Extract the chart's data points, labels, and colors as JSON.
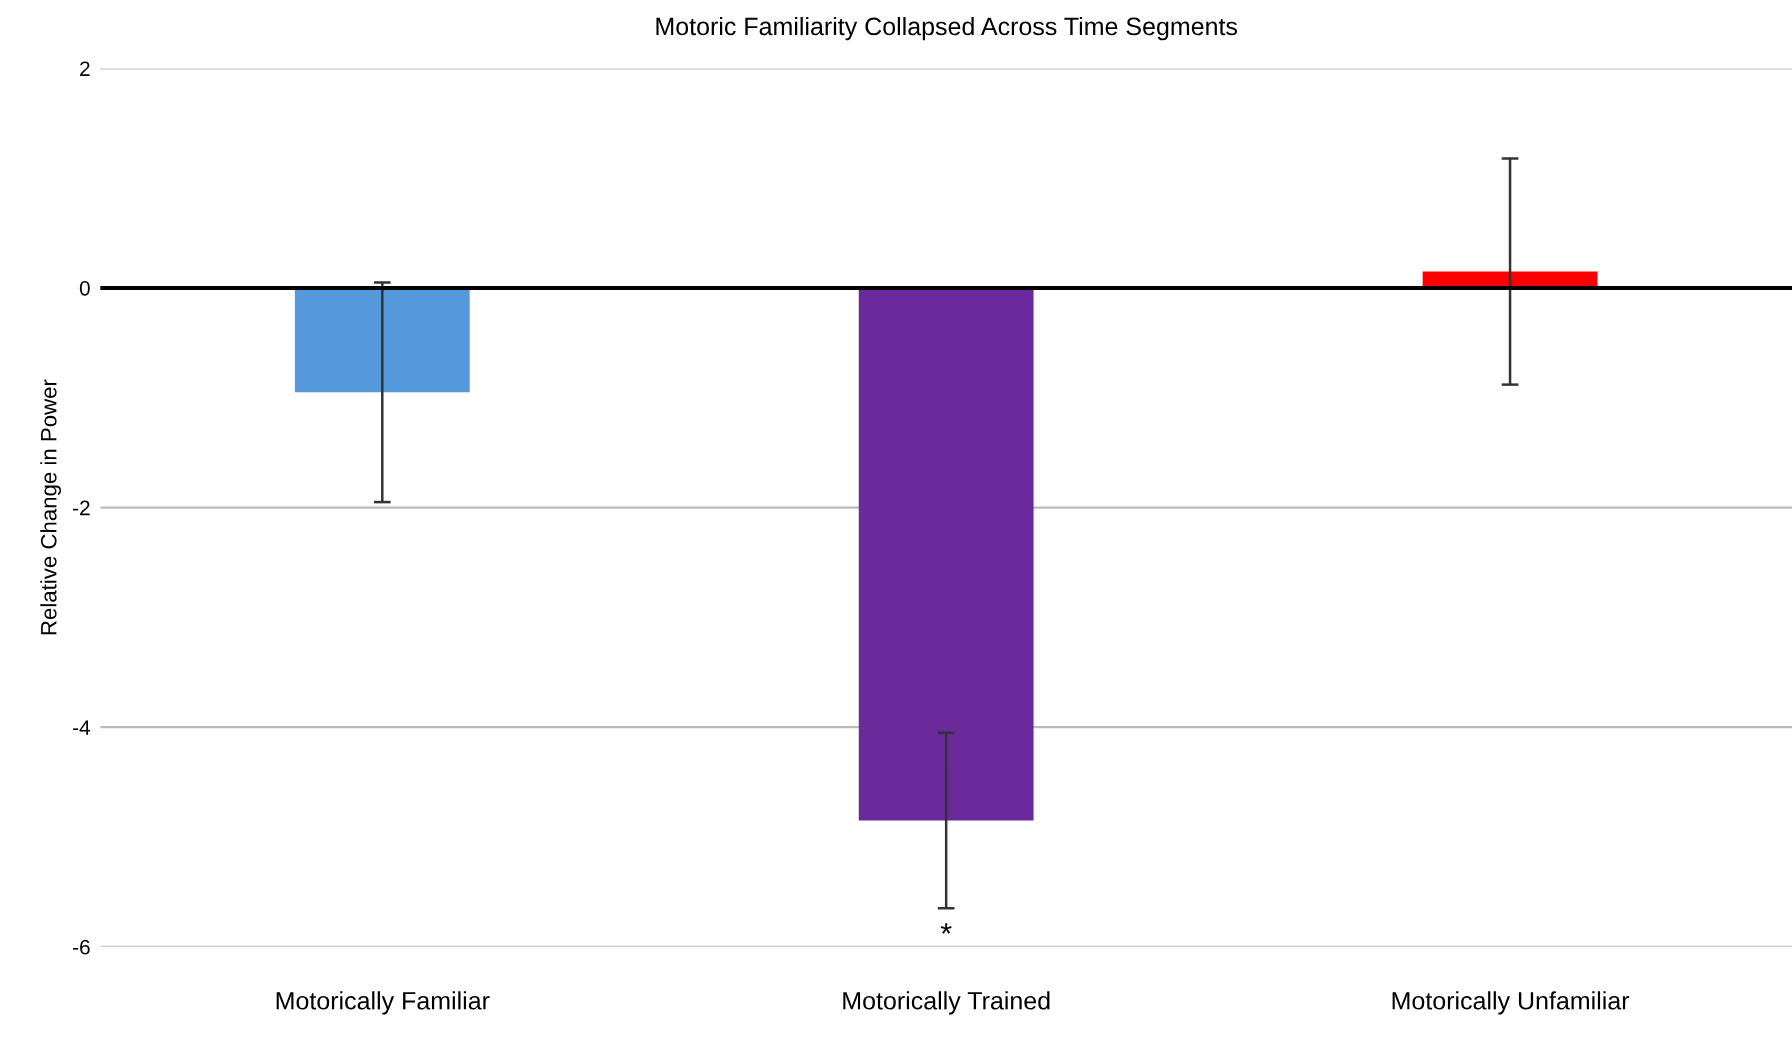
{
  "chart_data": {
    "type": "bar",
    "title": "Motoric Familiarity Collapsed Across Time Segments",
    "ylabel": "Relative Change in Power",
    "categories": [
      "Motorically Familiar",
      "Motorically Trained",
      "Motorically Unfamiliar"
    ],
    "values": [
      -0.95,
      -4.85,
      0.15
    ],
    "errors": [
      1.0,
      0.8,
      1.03
    ],
    "colors": [
      "#5499dc",
      "#6a2a9c",
      "#ff0000"
    ],
    "ylim": [
      -6,
      2
    ],
    "yticks": [
      -6,
      -4,
      -2,
      0,
      2
    ],
    "grid": "y",
    "annotations": [
      "*"
    ]
  }
}
